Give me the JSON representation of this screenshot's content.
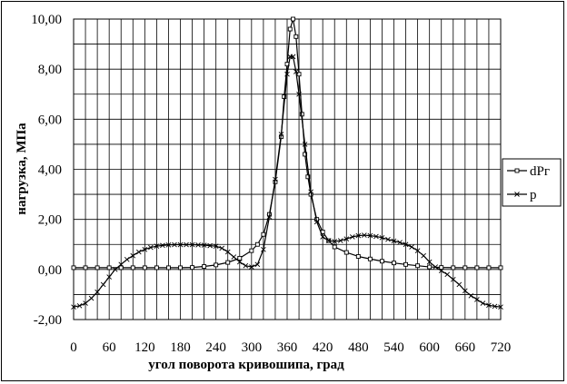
{
  "chart_data": {
    "type": "line",
    "title": "",
    "xlabel": "угол поворота кривошипа, град",
    "ylabel": "нагрузка, МПа",
    "xlim": [
      0,
      720
    ],
    "ylim": [
      -2,
      10
    ],
    "x_ticks": [
      0,
      60,
      120,
      180,
      240,
      300,
      360,
      420,
      480,
      540,
      600,
      660,
      720
    ],
    "x_tick_labels": [
      "0",
      "60",
      "120",
      "180",
      "240",
      "300",
      "360",
      "420",
      "480",
      "540",
      "600",
      "660",
      "720"
    ],
    "y_ticks": [
      -2,
      0,
      2,
      4,
      6,
      8,
      10
    ],
    "y_tick_labels": [
      "-2,00",
      "0,00",
      "2,00",
      "4,00",
      "6,00",
      "8,00",
      "10,00"
    ],
    "x_minor_step": 20,
    "y_minor_step": 1,
    "grid": true,
    "legend_position": "right",
    "series": [
      {
        "name": "dPг",
        "marker": "square",
        "color": "#000000",
        "x": [
          0,
          20,
          40,
          60,
          80,
          100,
          120,
          140,
          160,
          180,
          200,
          220,
          240,
          260,
          280,
          300,
          310,
          320,
          330,
          340,
          350,
          355,
          360,
          365,
          370,
          375,
          380,
          385,
          390,
          395,
          400,
          410,
          420,
          430,
          440,
          460,
          480,
          500,
          520,
          540,
          560,
          580,
          600,
          620,
          640,
          660,
          680,
          700,
          720
        ],
        "y": [
          0.07,
          0.07,
          0.07,
          0.07,
          0.07,
          0.07,
          0.07,
          0.07,
          0.07,
          0.07,
          0.08,
          0.12,
          0.18,
          0.28,
          0.45,
          0.75,
          1.0,
          1.4,
          2.2,
          3.5,
          5.3,
          6.9,
          8.2,
          9.6,
          10.0,
          9.3,
          7.8,
          6.2,
          4.6,
          3.7,
          3.0,
          2.0,
          1.5,
          1.15,
          0.9,
          0.68,
          0.52,
          0.42,
          0.33,
          0.26,
          0.2,
          0.15,
          0.1,
          0.08,
          0.07,
          0.07,
          0.07,
          0.07,
          0.07
        ]
      },
      {
        "name": "p",
        "marker": "cross",
        "color": "#000000",
        "x": [
          0,
          10,
          20,
          30,
          40,
          50,
          60,
          70,
          80,
          90,
          100,
          110,
          120,
          130,
          140,
          150,
          160,
          170,
          180,
          190,
          200,
          210,
          220,
          230,
          240,
          250,
          260,
          270,
          280,
          290,
          300,
          310,
          320,
          330,
          340,
          350,
          360,
          365,
          370,
          375,
          380,
          390,
          400,
          410,
          420,
          430,
          440,
          450,
          460,
          470,
          480,
          490,
          500,
          510,
          520,
          530,
          540,
          550,
          560,
          570,
          580,
          590,
          600,
          610,
          620,
          630,
          640,
          650,
          660,
          670,
          680,
          690,
          700,
          710,
          720
        ],
        "y": [
          -1.5,
          -1.45,
          -1.35,
          -1.15,
          -0.9,
          -0.6,
          -0.3,
          0.0,
          0.2,
          0.4,
          0.55,
          0.7,
          0.8,
          0.88,
          0.93,
          0.96,
          0.98,
          0.99,
          0.99,
          0.99,
          0.99,
          0.98,
          0.97,
          0.95,
          0.93,
          0.85,
          0.7,
          0.5,
          0.3,
          0.15,
          0.1,
          0.2,
          0.8,
          2.1,
          3.6,
          5.4,
          7.8,
          8.5,
          8.5,
          7.9,
          7.0,
          5.0,
          3.1,
          1.9,
          1.3,
          1.15,
          1.12,
          1.15,
          1.22,
          1.3,
          1.35,
          1.37,
          1.35,
          1.32,
          1.27,
          1.2,
          1.14,
          1.08,
          1.0,
          0.9,
          0.75,
          0.55,
          0.3,
          0.1,
          -0.05,
          -0.2,
          -0.4,
          -0.6,
          -0.85,
          -1.05,
          -1.2,
          -1.35,
          -1.43,
          -1.47,
          -1.5
        ]
      }
    ]
  }
}
